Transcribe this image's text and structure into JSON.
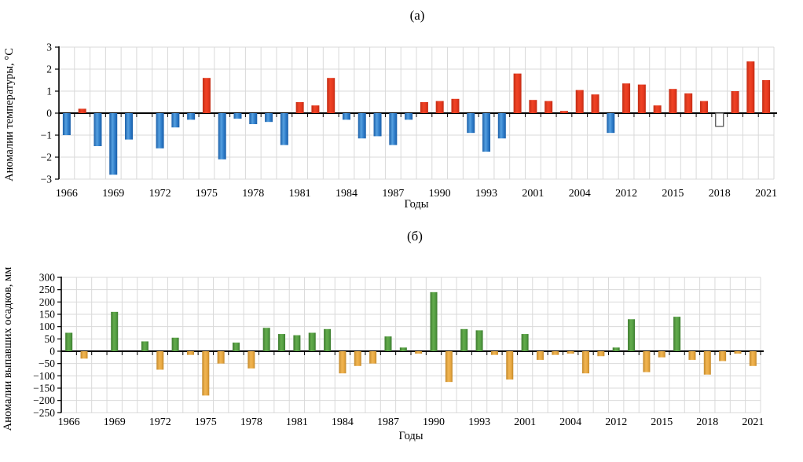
{
  "figure": {
    "panels": [
      {
        "id": "a",
        "title": "(а)",
        "y_axis_title": "Аномалии температуры, °С",
        "x_axis_title": "Годы"
      },
      {
        "id": "b",
        "title": "(б)",
        "y_axis_title": "Аномалии выпавших осадков, мм",
        "x_axis_title": "Годы"
      }
    ]
  },
  "chart_data": [
    {
      "type": "bar",
      "title": "(а)",
      "ylabel": "Аномалии температуры, °С",
      "xlabel": "Годы",
      "ylim": [
        -3,
        3
      ],
      "yticks": [
        3,
        2,
        1,
        0,
        -1,
        -2,
        -3
      ],
      "grid": true,
      "legend": "none",
      "x_tick_labels": [
        "1966",
        "1969",
        "1972",
        "1975",
        "1978",
        "1981",
        "1984",
        "1987",
        "1990",
        "1993",
        "2001",
        "2004",
        "2012",
        "2015",
        "2018",
        "2021"
      ],
      "label_every": 3,
      "categories": [
        "1966",
        "1967",
        "1968",
        "1969",
        "1970",
        "1971",
        "1972",
        "1973",
        "1974",
        "1975",
        "1976",
        "1977",
        "1978",
        "1979",
        "1980",
        "1981",
        "1982",
        "1983",
        "1984",
        "1985",
        "1986",
        "1987",
        "1988",
        "1989",
        "1990",
        "1991",
        "1992",
        "1993",
        "",
        "",
        "2001",
        "",
        "",
        "2004",
        "",
        "",
        "2012",
        "2013",
        "2014",
        "2015",
        "2016",
        "2017",
        "2018",
        "2019",
        "2020",
        "2021"
      ],
      "values": [
        -1.0,
        0.2,
        -1.5,
        -2.8,
        -1.2,
        null,
        -1.6,
        -0.65,
        -0.3,
        1.6,
        -2.1,
        -0.25,
        -0.5,
        -0.4,
        -1.45,
        0.5,
        0.35,
        1.6,
        -0.3,
        -1.15,
        -1.05,
        -1.45,
        -0.3,
        0.5,
        0.55,
        0.65,
        -0.9,
        -1.75,
        -1.15,
        1.8,
        0.6,
        0.55,
        0.1,
        1.05,
        0.85,
        -0.9,
        1.35,
        1.3,
        0.35,
        1.1,
        0.9,
        0.55,
        -0.6,
        1.0,
        2.35,
        1.5
      ],
      "colors": {
        "positive": "#e8391f",
        "negative": "#2e7cc9",
        "outlined_stroke": "#4a4a4a",
        "grid": "#d9d9d9",
        "axis": "#000000"
      },
      "special_bars": [
        {
          "index": 42,
          "category": "2018",
          "style": "outlined-white"
        }
      ]
    },
    {
      "type": "bar",
      "title": "(б)",
      "ylabel": "Аномалии выпавших осадков, мм",
      "xlabel": "Годы",
      "ylim": [
        -250,
        300
      ],
      "yticks": [
        300,
        250,
        200,
        150,
        100,
        50,
        0,
        -50,
        -100,
        -150,
        -200,
        -250
      ],
      "grid": true,
      "legend": "none",
      "x_tick_labels": [
        "1966",
        "1969",
        "1972",
        "1975",
        "1978",
        "1981",
        "1984",
        "1987",
        "1990",
        "1993",
        "2001",
        "2004",
        "2012",
        "2015",
        "2018",
        "2021"
      ],
      "label_every": 3,
      "categories": [
        "1966",
        "1967",
        "1968",
        "1969",
        "1970",
        "1971",
        "1972",
        "1973",
        "1974",
        "1975",
        "1976",
        "1977",
        "1978",
        "1979",
        "1980",
        "1981",
        "1982",
        "1983",
        "1984",
        "1985",
        "1986",
        "1987",
        "1988",
        "1989",
        "1990",
        "1991",
        "1992",
        "1993",
        "",
        "",
        "2001",
        "",
        "",
        "2004",
        "",
        "",
        "2012",
        "2013",
        "2014",
        "2015",
        "2016",
        "2017",
        "2018",
        "2019",
        "2020",
        "2021"
      ],
      "values": [
        75,
        -30,
        null,
        160,
        null,
        40,
        -75,
        55,
        -15,
        -180,
        -50,
        35,
        -70,
        95,
        70,
        65,
        75,
        90,
        -90,
        -60,
        -50,
        60,
        15,
        -10,
        240,
        -125,
        90,
        85,
        -15,
        -115,
        70,
        -35,
        -15,
        -10,
        -90,
        -20,
        15,
        130,
        -85,
        -25,
        140,
        -35,
        -95,
        -40,
        -10,
        -60
      ],
      "colors": {
        "positive": "#55a044",
        "negative": "#eaaa43",
        "grid": "#d9d9d9",
        "axis": "#000000"
      },
      "special_bars": []
    }
  ]
}
